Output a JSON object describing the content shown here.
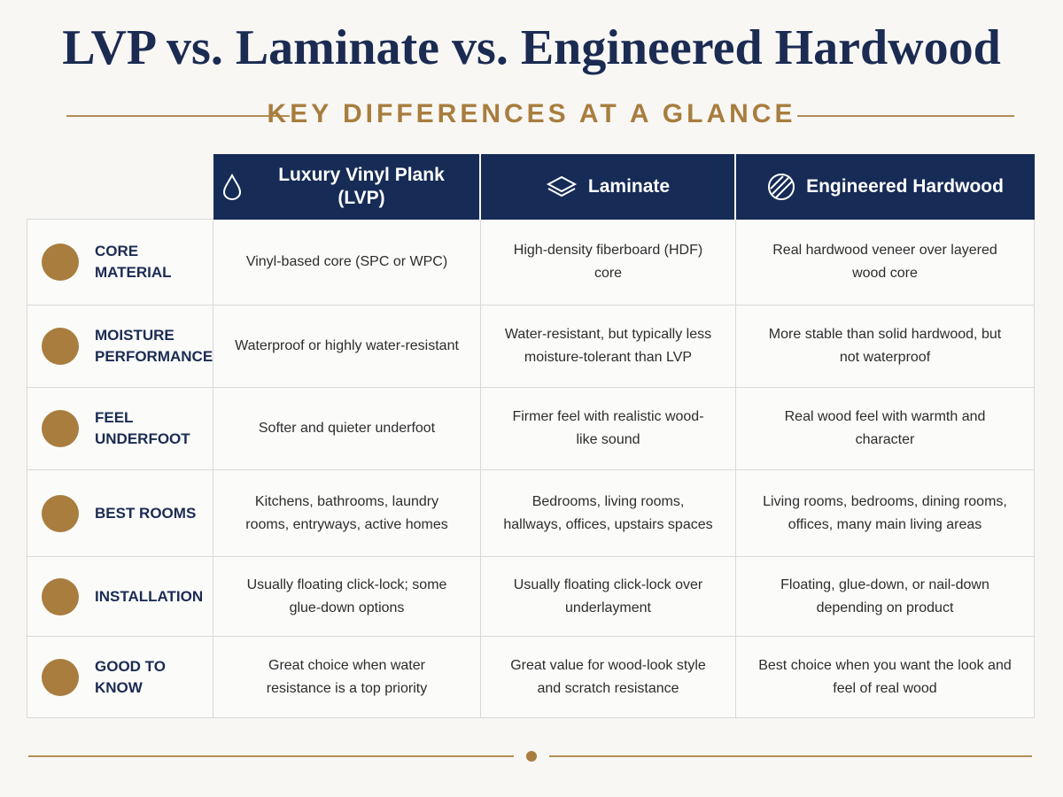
{
  "header": {
    "title": "LVP vs. Laminate vs. Engineered Hardwood",
    "subtitle": "KEY DIFFERENCES AT A GLANCE"
  },
  "table": {
    "columns": [
      "Luxury Vinyl Plank (LVP)",
      "Laminate",
      "Engineered Hardwood"
    ],
    "rows": [
      {
        "label": "CORE MATERIAL",
        "cells": [
          "Vinyl-based core (SPC or WPC)",
          "High-density fiberboard (HDF) core",
          "Real hardwood veneer over layered wood core"
        ]
      },
      {
        "label": "MOISTURE PERFORMANCE",
        "cells": [
          "Waterproof or highly water-resistant",
          "Water-resistant, but typically less moisture-tolerant than LVP",
          "More stable than solid hardwood, but not waterproof"
        ]
      },
      {
        "label": "FEEL UNDERFOOT",
        "cells": [
          "Softer and quieter underfoot",
          "Firmer feel with realistic wood-like sound",
          "Real wood feel with warmth and character"
        ]
      },
      {
        "label": "BEST ROOMS",
        "cells": [
          "Kitchens, bathrooms, laundry rooms, entryways, active homes",
          "Bedrooms, living rooms, hallways, offices, upstairs spaces",
          "Living rooms, bedrooms, dining rooms, offices, many main living areas"
        ]
      },
      {
        "label": "INSTALLATION",
        "cells": [
          "Usually floating click-lock; some glue-down options",
          "Usually floating click-lock over underlayment",
          "Floating, glue-down, or nail-down depending on product"
        ]
      },
      {
        "label": "GOOD TO KNOW",
        "cells": [
          "Great choice when water resistance is a top priority",
          "Great value for wood-look style and scratch resistance",
          "Best choice when you want the look and feel of real wood"
        ]
      }
    ]
  }
}
